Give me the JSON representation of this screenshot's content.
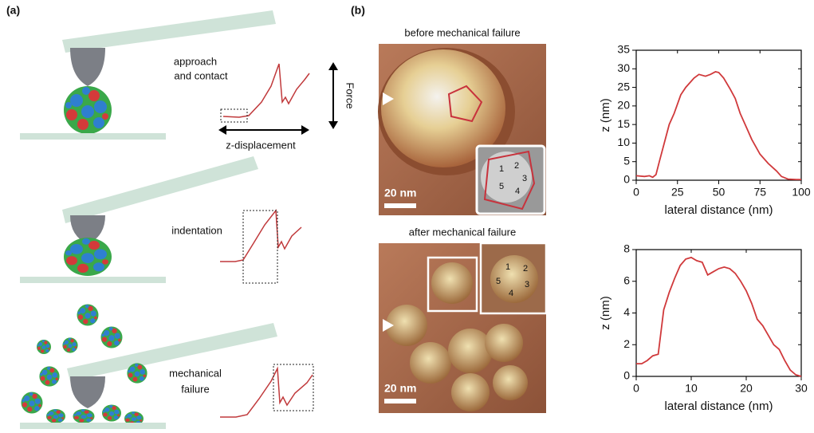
{
  "labels": {
    "panel_a": "(a)",
    "panel_b": "(b)",
    "approach": [
      "approach",
      "and contact"
    ],
    "force": "Force",
    "z_displacement": "z-displacement",
    "indentation": "indentation",
    "failure": [
      "mechanical",
      "failure"
    ],
    "before": "before mechanical failure",
    "after": "after mechanical failure",
    "scale_bar": "20 nm",
    "inset_numbers": [
      "1",
      "2",
      "3",
      "4",
      "5"
    ]
  },
  "chart_data": [
    {
      "type": "line",
      "xlabel": "lateral distance (nm)",
      "ylabel": "z (nm)",
      "xlim": [
        0,
        100
      ],
      "xticks": [
        0,
        25,
        50,
        75,
        100
      ],
      "ylim": [
        0,
        35
      ],
      "yticks": [
        0,
        5,
        10,
        15,
        20,
        25,
        30,
        35
      ],
      "color": "#d0393b",
      "x": [
        0,
        5,
        8,
        10,
        12,
        14,
        17,
        20,
        23,
        27,
        30,
        35,
        38,
        42,
        45,
        48,
        50,
        53,
        57,
        60,
        63,
        67,
        70,
        75,
        80,
        85,
        88,
        92,
        97,
        100
      ],
      "values": [
        1.2,
        1.0,
        1.2,
        0.8,
        1.5,
        5,
        10,
        15,
        18,
        23,
        25,
        27.5,
        28.5,
        28,
        28.5,
        29.2,
        29,
        27.5,
        24.5,
        22,
        18,
        14,
        11,
        7,
        4.5,
        2.5,
        1,
        0.3,
        0.2,
        0.2
      ]
    },
    {
      "type": "line",
      "xlabel": "lateral distance (nm)",
      "ylabel": "z (nm)",
      "xlim": [
        0,
        30
      ],
      "xticks": [
        0,
        10,
        20,
        30
      ],
      "ylim": [
        0,
        8
      ],
      "yticks": [
        0,
        2,
        4,
        6,
        8
      ],
      "color": "#d0393b",
      "x": [
        0,
        1,
        2,
        3,
        4,
        5,
        6,
        7,
        8,
        9,
        10,
        11,
        12,
        13,
        14,
        15,
        16,
        17,
        18,
        19,
        20,
        21,
        22,
        23,
        24,
        25,
        26,
        27,
        28,
        29,
        30
      ],
      "values": [
        0.8,
        0.8,
        1.0,
        1.3,
        1.4,
        4.2,
        5.3,
        6.2,
        7.0,
        7.4,
        7.5,
        7.3,
        7.2,
        6.4,
        6.6,
        6.8,
        6.9,
        6.8,
        6.5,
        6.0,
        5.4,
        4.6,
        3.6,
        3.2,
        2.6,
        2.0,
        1.7,
        1.0,
        0.4,
        0.1,
        0
      ]
    }
  ]
}
